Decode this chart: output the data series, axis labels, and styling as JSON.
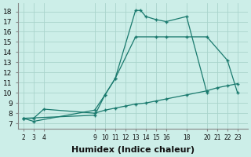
{
  "bg_color": "#cceee8",
  "grid_color": "#aad4cc",
  "line_color": "#1a7a6e",
  "xlabel": "Humidex (Indice chaleur)",
  "xlabel_fontsize": 8,
  "ylabel_ticks": [
    7,
    8,
    9,
    10,
    11,
    12,
    13,
    14,
    15,
    16,
    17,
    18
  ],
  "xlim": [
    1.5,
    24
  ],
  "ylim": [
    6.5,
    18.8
  ],
  "xticks": [
    2,
    3,
    4,
    9,
    10,
    11,
    12,
    13,
    14,
    15,
    16,
    18,
    20,
    21,
    22,
    23
  ],
  "line1_x": [
    2,
    3,
    9,
    10,
    11,
    13,
    13.5,
    14,
    15,
    16,
    18,
    20
  ],
  "line1_y": [
    7.5,
    7.2,
    8.3,
    9.8,
    11.4,
    18.1,
    18.1,
    17.5,
    17.2,
    17.0,
    17.5,
    10.0
  ],
  "line2_x": [
    2,
    9,
    10,
    11,
    13,
    15,
    16,
    18,
    20,
    22,
    23
  ],
  "line2_y": [
    7.5,
    7.8,
    9.8,
    11.4,
    15.5,
    15.5,
    15.5,
    15.5,
    15.5,
    13.2,
    10.0
  ],
  "line3_x": [
    2,
    3,
    4,
    9,
    10,
    11,
    12,
    13,
    14,
    15,
    16,
    18,
    20,
    21,
    22,
    23
  ],
  "line3_y": [
    7.5,
    7.5,
    8.4,
    8.0,
    8.3,
    8.5,
    8.7,
    8.9,
    9.0,
    9.2,
    9.4,
    9.8,
    10.2,
    10.5,
    10.7,
    10.9
  ]
}
